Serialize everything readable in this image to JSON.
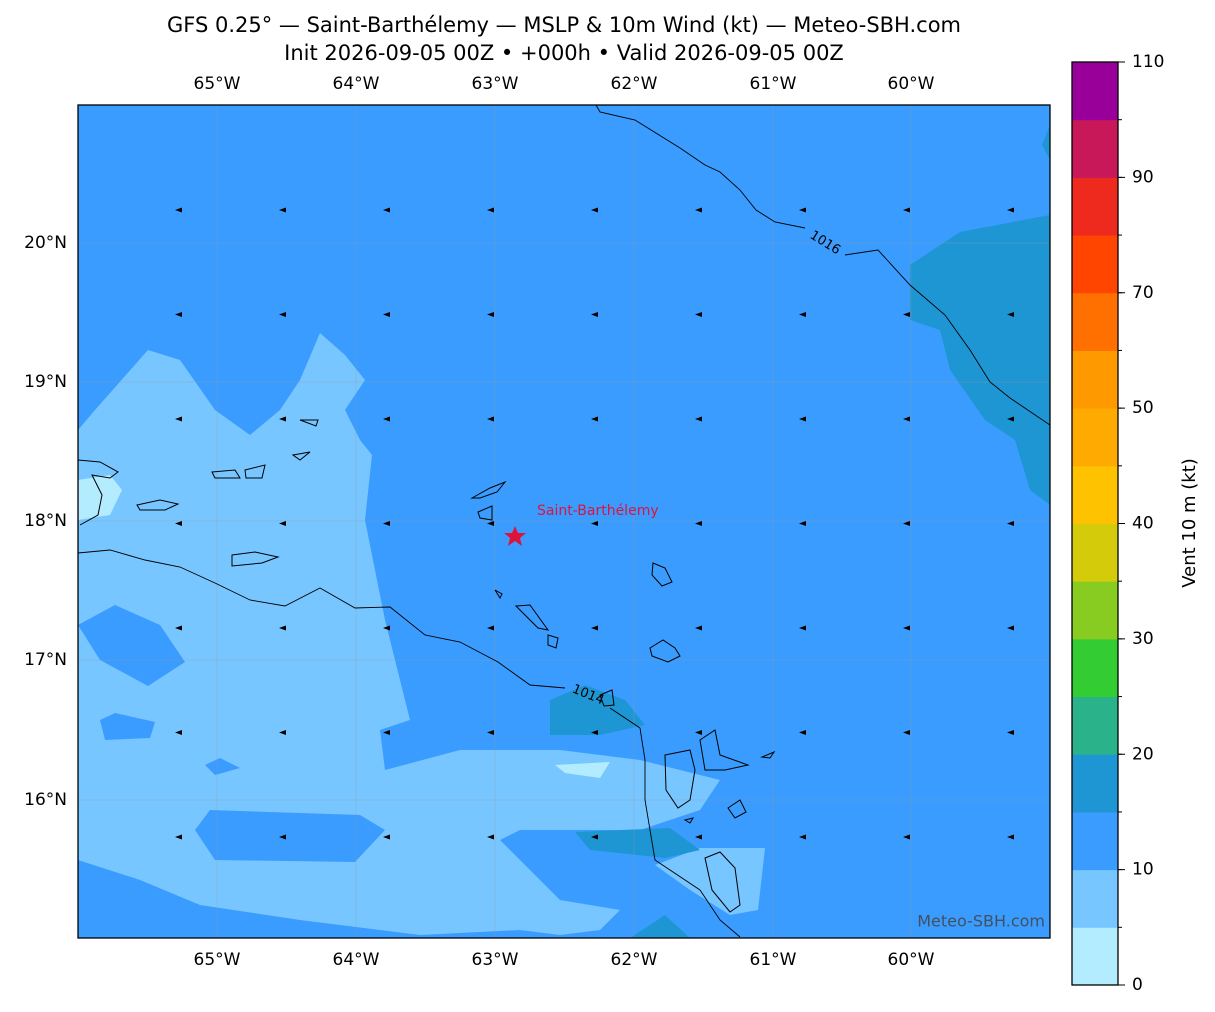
{
  "header": {
    "title": "GFS 0.25° — Saint-Barthélemy — MSLP & 10m Wind (kt) — Meteo-SBH.com",
    "subtitle": "Init 2026-09-05 00Z • +000h • Valid 2026-09-05 00Z"
  },
  "map": {
    "lon_labels": [
      "65°W",
      "64°W",
      "63°W",
      "62°W",
      "61°W",
      "60°W"
    ],
    "lat_labels": [
      "20°N",
      "19°N",
      "18°N",
      "17°N",
      "16°N"
    ],
    "contour_labels": [
      "1016",
      "1014"
    ],
    "place_label": "Saint-Barthélemy",
    "watermark": "Meteo-SBH.com"
  },
  "colorbar": {
    "label": "Vent 10 m (kt)",
    "bounds": [
      0,
      5,
      10,
      15,
      20,
      25,
      30,
      35,
      40,
      45,
      50,
      60,
      70,
      80,
      90,
      100,
      110
    ],
    "colors": [
      "#b3ecff",
      "#78c6ff",
      "#3a9cff",
      "#1f96d4",
      "#2ab38a",
      "#33cc33",
      "#88cc22",
      "#d4cc0a",
      "#ffc200",
      "#ffaa00",
      "#ff9900",
      "#ff7000",
      "#ff4500",
      "#ee2a1e",
      "#c8185a",
      "#990099"
    ],
    "ticks": [
      0,
      10,
      20,
      30,
      40,
      50,
      70,
      90,
      110
    ]
  }
}
